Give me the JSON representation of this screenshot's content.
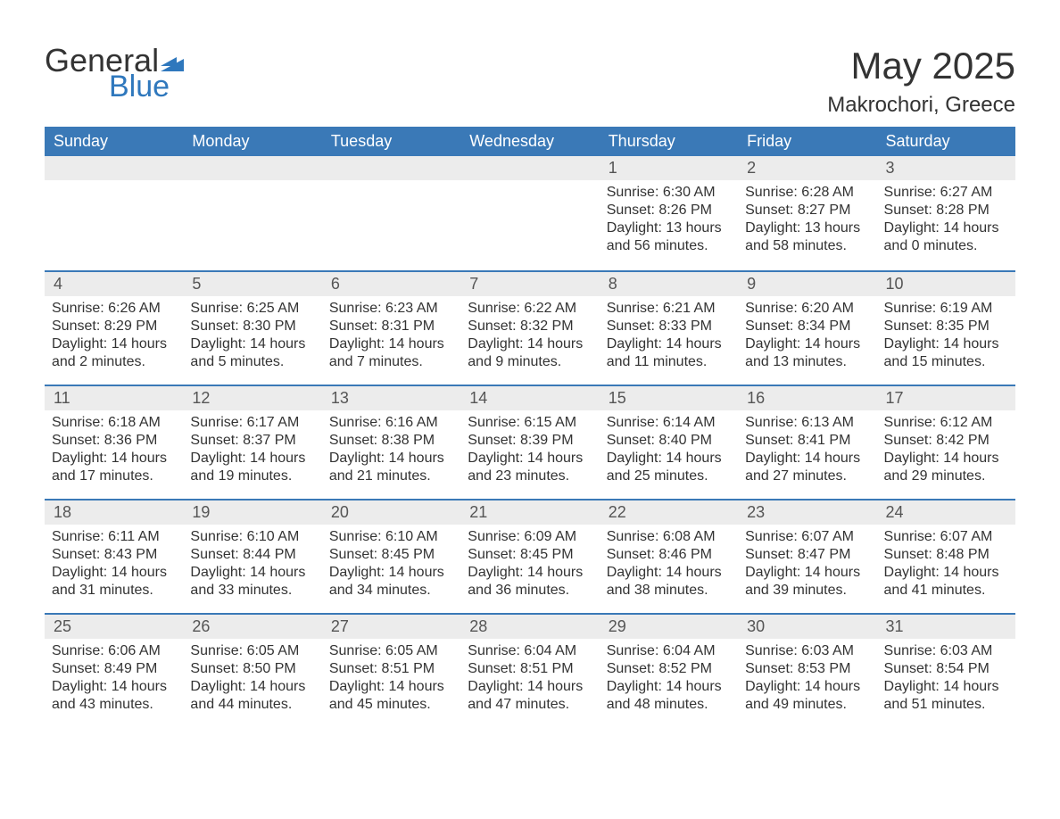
{
  "logo": {
    "word1": "General",
    "word2": "Blue",
    "flag_color": "#2f78bd"
  },
  "title": "May 2025",
  "location": "Makrochori, Greece",
  "colors": {
    "header_bg": "#3a79b7",
    "header_text": "#ffffff",
    "daynum_bg": "#ececec",
    "divider": "#3a79b7",
    "body_text": "#333333",
    "logo_blue": "#2f78bd"
  },
  "day_names": [
    "Sunday",
    "Monday",
    "Tuesday",
    "Wednesday",
    "Thursday",
    "Friday",
    "Saturday"
  ],
  "weeks": [
    [
      {
        "empty": true
      },
      {
        "empty": true
      },
      {
        "empty": true
      },
      {
        "empty": true
      },
      {
        "day": "1",
        "sunrise": "Sunrise: 6:30 AM",
        "sunset": "Sunset: 8:26 PM",
        "dl1": "Daylight: 13 hours",
        "dl2": "and 56 minutes."
      },
      {
        "day": "2",
        "sunrise": "Sunrise: 6:28 AM",
        "sunset": "Sunset: 8:27 PM",
        "dl1": "Daylight: 13 hours",
        "dl2": "and 58 minutes."
      },
      {
        "day": "3",
        "sunrise": "Sunrise: 6:27 AM",
        "sunset": "Sunset: 8:28 PM",
        "dl1": "Daylight: 14 hours",
        "dl2": "and 0 minutes."
      }
    ],
    [
      {
        "day": "4",
        "sunrise": "Sunrise: 6:26 AM",
        "sunset": "Sunset: 8:29 PM",
        "dl1": "Daylight: 14 hours",
        "dl2": "and 2 minutes."
      },
      {
        "day": "5",
        "sunrise": "Sunrise: 6:25 AM",
        "sunset": "Sunset: 8:30 PM",
        "dl1": "Daylight: 14 hours",
        "dl2": "and 5 minutes."
      },
      {
        "day": "6",
        "sunrise": "Sunrise: 6:23 AM",
        "sunset": "Sunset: 8:31 PM",
        "dl1": "Daylight: 14 hours",
        "dl2": "and 7 minutes."
      },
      {
        "day": "7",
        "sunrise": "Sunrise: 6:22 AM",
        "sunset": "Sunset: 8:32 PM",
        "dl1": "Daylight: 14 hours",
        "dl2": "and 9 minutes."
      },
      {
        "day": "8",
        "sunrise": "Sunrise: 6:21 AM",
        "sunset": "Sunset: 8:33 PM",
        "dl1": "Daylight: 14 hours",
        "dl2": "and 11 minutes."
      },
      {
        "day": "9",
        "sunrise": "Sunrise: 6:20 AM",
        "sunset": "Sunset: 8:34 PM",
        "dl1": "Daylight: 14 hours",
        "dl2": "and 13 minutes."
      },
      {
        "day": "10",
        "sunrise": "Sunrise: 6:19 AM",
        "sunset": "Sunset: 8:35 PM",
        "dl1": "Daylight: 14 hours",
        "dl2": "and 15 minutes."
      }
    ],
    [
      {
        "day": "11",
        "sunrise": "Sunrise: 6:18 AM",
        "sunset": "Sunset: 8:36 PM",
        "dl1": "Daylight: 14 hours",
        "dl2": "and 17 minutes."
      },
      {
        "day": "12",
        "sunrise": "Sunrise: 6:17 AM",
        "sunset": "Sunset: 8:37 PM",
        "dl1": "Daylight: 14 hours",
        "dl2": "and 19 minutes."
      },
      {
        "day": "13",
        "sunrise": "Sunrise: 6:16 AM",
        "sunset": "Sunset: 8:38 PM",
        "dl1": "Daylight: 14 hours",
        "dl2": "and 21 minutes."
      },
      {
        "day": "14",
        "sunrise": "Sunrise: 6:15 AM",
        "sunset": "Sunset: 8:39 PM",
        "dl1": "Daylight: 14 hours",
        "dl2": "and 23 minutes."
      },
      {
        "day": "15",
        "sunrise": "Sunrise: 6:14 AM",
        "sunset": "Sunset: 8:40 PM",
        "dl1": "Daylight: 14 hours",
        "dl2": "and 25 minutes."
      },
      {
        "day": "16",
        "sunrise": "Sunrise: 6:13 AM",
        "sunset": "Sunset: 8:41 PM",
        "dl1": "Daylight: 14 hours",
        "dl2": "and 27 minutes."
      },
      {
        "day": "17",
        "sunrise": "Sunrise: 6:12 AM",
        "sunset": "Sunset: 8:42 PM",
        "dl1": "Daylight: 14 hours",
        "dl2": "and 29 minutes."
      }
    ],
    [
      {
        "day": "18",
        "sunrise": "Sunrise: 6:11 AM",
        "sunset": "Sunset: 8:43 PM",
        "dl1": "Daylight: 14 hours",
        "dl2": "and 31 minutes."
      },
      {
        "day": "19",
        "sunrise": "Sunrise: 6:10 AM",
        "sunset": "Sunset: 8:44 PM",
        "dl1": "Daylight: 14 hours",
        "dl2": "and 33 minutes."
      },
      {
        "day": "20",
        "sunrise": "Sunrise: 6:10 AM",
        "sunset": "Sunset: 8:45 PM",
        "dl1": "Daylight: 14 hours",
        "dl2": "and 34 minutes."
      },
      {
        "day": "21",
        "sunrise": "Sunrise: 6:09 AM",
        "sunset": "Sunset: 8:45 PM",
        "dl1": "Daylight: 14 hours",
        "dl2": "and 36 minutes."
      },
      {
        "day": "22",
        "sunrise": "Sunrise: 6:08 AM",
        "sunset": "Sunset: 8:46 PM",
        "dl1": "Daylight: 14 hours",
        "dl2": "and 38 minutes."
      },
      {
        "day": "23",
        "sunrise": "Sunrise: 6:07 AM",
        "sunset": "Sunset: 8:47 PM",
        "dl1": "Daylight: 14 hours",
        "dl2": "and 39 minutes."
      },
      {
        "day": "24",
        "sunrise": "Sunrise: 6:07 AM",
        "sunset": "Sunset: 8:48 PM",
        "dl1": "Daylight: 14 hours",
        "dl2": "and 41 minutes."
      }
    ],
    [
      {
        "day": "25",
        "sunrise": "Sunrise: 6:06 AM",
        "sunset": "Sunset: 8:49 PM",
        "dl1": "Daylight: 14 hours",
        "dl2": "and 43 minutes."
      },
      {
        "day": "26",
        "sunrise": "Sunrise: 6:05 AM",
        "sunset": "Sunset: 8:50 PM",
        "dl1": "Daylight: 14 hours",
        "dl2": "and 44 minutes."
      },
      {
        "day": "27",
        "sunrise": "Sunrise: 6:05 AM",
        "sunset": "Sunset: 8:51 PM",
        "dl1": "Daylight: 14 hours",
        "dl2": "and 45 minutes."
      },
      {
        "day": "28",
        "sunrise": "Sunrise: 6:04 AM",
        "sunset": "Sunset: 8:51 PM",
        "dl1": "Daylight: 14 hours",
        "dl2": "and 47 minutes."
      },
      {
        "day": "29",
        "sunrise": "Sunrise: 6:04 AM",
        "sunset": "Sunset: 8:52 PM",
        "dl1": "Daylight: 14 hours",
        "dl2": "and 48 minutes."
      },
      {
        "day": "30",
        "sunrise": "Sunrise: 6:03 AM",
        "sunset": "Sunset: 8:53 PM",
        "dl1": "Daylight: 14 hours",
        "dl2": "and 49 minutes."
      },
      {
        "day": "31",
        "sunrise": "Sunrise: 6:03 AM",
        "sunset": "Sunset: 8:54 PM",
        "dl1": "Daylight: 14 hours",
        "dl2": "and 51 minutes."
      }
    ]
  ]
}
